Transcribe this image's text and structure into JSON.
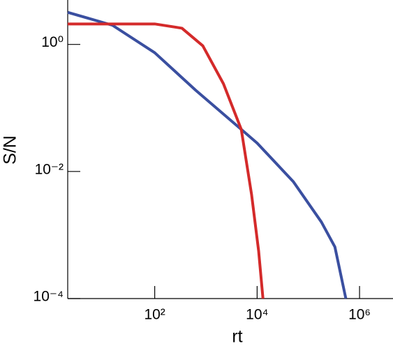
{
  "chart_data": {
    "type": "line",
    "xlabel": "rt",
    "ylabel": "S/N",
    "xscale": "log",
    "yscale": "log",
    "xlim": [
      2,
      4500000
    ],
    "ylim": [
      0.0001,
      5
    ],
    "xticks": [
      {
        "value": 100,
        "label": "10²"
      },
      {
        "value": 10000,
        "label": "10⁴"
      },
      {
        "value": 1000000,
        "label": "10⁶"
      }
    ],
    "yticks": [
      {
        "value": 1,
        "label": "10⁰"
      },
      {
        "value": 0.01,
        "label": "10⁻²"
      },
      {
        "value": 0.0001,
        "label": "10⁻⁴"
      }
    ],
    "series": [
      {
        "color": "#3a4fa0",
        "x": [
          2,
          15,
          100,
          631,
          4900,
          10000,
          51000,
          180000,
          330000,
          540000
        ],
        "values": [
          3.2,
          2.0,
          0.74,
          0.19,
          0.046,
          0.028,
          0.0069,
          0.0016,
          0.00065,
          0.0001
        ]
      },
      {
        "color": "#d42a2a",
        "x": [
          2,
          100,
          340,
          870,
          2200,
          4900,
          7800,
          10700,
          13000
        ],
        "values": [
          2.1,
          2.1,
          1.8,
          0.95,
          0.24,
          0.046,
          0.0043,
          0.00056,
          0.0001
        ]
      }
    ]
  }
}
